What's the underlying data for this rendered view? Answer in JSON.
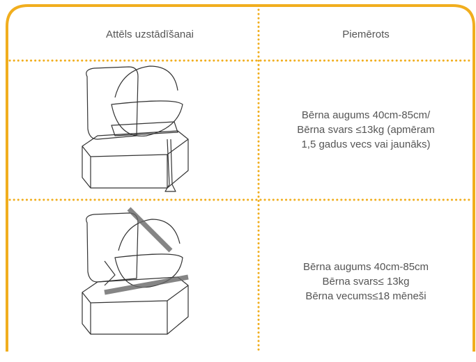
{
  "table": {
    "header": [
      "Attēls uzstādīšanai",
      "Piemērots"
    ],
    "rows": [
      {
        "lines": [
          "Bērna augums 40cm-85cm/",
          "Bērna svars ≤13kg (apmēram",
          "1,5 gadus vecs vai jaunāks)"
        ]
      },
      {
        "lines": [
          "Bērna augums 40cm-85cm",
          "Bērna svars≤ 13kg",
          "Bērna vecums≤18 mēneši"
        ]
      }
    ]
  }
}
